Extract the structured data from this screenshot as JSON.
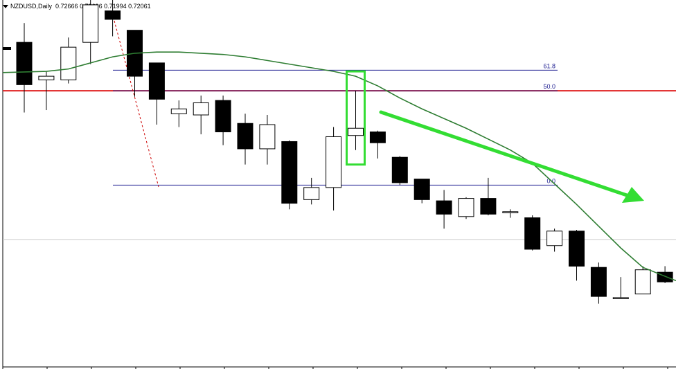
{
  "header": {
    "symbol": "NZDUSD,Daily",
    "ohlc": "0.72666 0.72696 0.71994 0.72061"
  },
  "colors": {
    "candle": "#000000",
    "ma": "#2e7d32",
    "fib_line": "#1b1b8f",
    "fib50_line": "#e02020",
    "highlight": "#33dd33",
    "arrow": "#33dd33",
    "trend_dashed": "#cc0000",
    "hline": "#c8c8c8"
  },
  "chart_data": {
    "type": "candlestick",
    "symbol": "NZDUSD",
    "timeframe": "Daily",
    "candles": [
      {
        "o": 0.733,
        "h": 0.7346,
        "l": 0.7272,
        "c": 0.7295
      },
      {
        "o": 0.7299,
        "h": 0.7306,
        "l": 0.7274,
        "c": 0.7302
      },
      {
        "o": 0.7299,
        "h": 0.7334,
        "l": 0.7296,
        "c": 0.7326
      },
      {
        "o": 0.733,
        "h": 0.7375,
        "l": 0.7312,
        "c": 0.7361
      },
      {
        "o": 0.7356,
        "h": 0.7371,
        "l": 0.7335,
        "c": 0.7349
      },
      {
        "o": 0.734,
        "h": 0.7337,
        "l": 0.7285,
        "c": 0.7302
      },
      {
        "o": 0.7313,
        "h": 0.7311,
        "l": 0.7262,
        "c": 0.7283
      },
      {
        "o": 0.7271,
        "h": 0.7282,
        "l": 0.726,
        "c": 0.7275
      },
      {
        "o": 0.727,
        "h": 0.7286,
        "l": 0.7254,
        "c": 0.728
      },
      {
        "o": 0.7282,
        "h": 0.7286,
        "l": 0.7245,
        "c": 0.7256
      },
      {
        "o": 0.7263,
        "h": 0.7271,
        "l": 0.7229,
        "c": 0.7242
      },
      {
        "o": 0.7242,
        "h": 0.727,
        "l": 0.7229,
        "c": 0.7262
      },
      {
        "o": 0.7248,
        "h": 0.7249,
        "l": 0.7192,
        "c": 0.7197
      },
      {
        "o": 0.72,
        "h": 0.7218,
        "l": 0.7196,
        "c": 0.721
      },
      {
        "o": 0.721,
        "h": 0.726,
        "l": 0.7191,
        "c": 0.7252
      },
      {
        "o": 0.7253,
        "h": 0.729,
        "l": 0.7241,
        "c": 0.7259
      },
      {
        "o": 0.7256,
        "h": 0.7257,
        "l": 0.7234,
        "c": 0.7247
      },
      {
        "o": 0.7235,
        "h": 0.7236,
        "l": 0.7212,
        "c": 0.7214
      },
      {
        "o": 0.7217,
        "h": 0.7216,
        "l": 0.7197,
        "c": 0.72
      },
      {
        "o": 0.7199,
        "h": 0.7208,
        "l": 0.7176,
        "c": 0.7188
      },
      {
        "o": 0.7186,
        "h": 0.7202,
        "l": 0.7184,
        "c": 0.7201
      },
      {
        "o": 0.7201,
        "h": 0.7218,
        "l": 0.7187,
        "c": 0.7188
      },
      {
        "o": 0.719,
        "h": 0.7192,
        "l": 0.7185,
        "c": 0.719
      },
      {
        "o": 0.7185,
        "h": 0.7187,
        "l": 0.7158,
        "c": 0.7159
      },
      {
        "o": 0.7162,
        "h": 0.7176,
        "l": 0.7157,
        "c": 0.7174
      },
      {
        "o": 0.7174,
        "h": 0.7175,
        "l": 0.7133,
        "c": 0.7145
      },
      {
        "o": 0.7144,
        "h": 0.7148,
        "l": 0.7114,
        "c": 0.712
      },
      {
        "o": 0.7119,
        "h": 0.7136,
        "l": 0.7118,
        "c": 0.7119
      },
      {
        "o": 0.7122,
        "h": 0.7145,
        "l": 0.7122,
        "c": 0.7142
      },
      {
        "o": 0.714,
        "h": 0.7145,
        "l": 0.7131,
        "c": 0.7132
      }
    ],
    "moving_average": [
      0.7305,
      0.7306,
      0.7308,
      0.7313,
      0.7318,
      0.7321,
      0.7322,
      0.7322,
      0.7321,
      0.732,
      0.7318,
      0.7315,
      0.7312,
      0.7309,
      0.7306,
      0.7302,
      0.7294,
      0.7284,
      0.7275,
      0.7267,
      0.7259,
      0.725,
      0.7241,
      0.723,
      0.7213,
      0.7196,
      0.7178,
      0.716,
      0.7144,
      0.7133
    ],
    "fibonacci": {
      "levels": [
        {
          "label": "61.8",
          "price": 0.7307
        },
        {
          "label": "50.0",
          "price": 0.729
        },
        {
          "label": "0.0",
          "price": 0.7212
        }
      ]
    },
    "red_level": 0.729,
    "gray_level": 0.7167,
    "ylim": [
      0.706,
      0.7365
    ]
  }
}
